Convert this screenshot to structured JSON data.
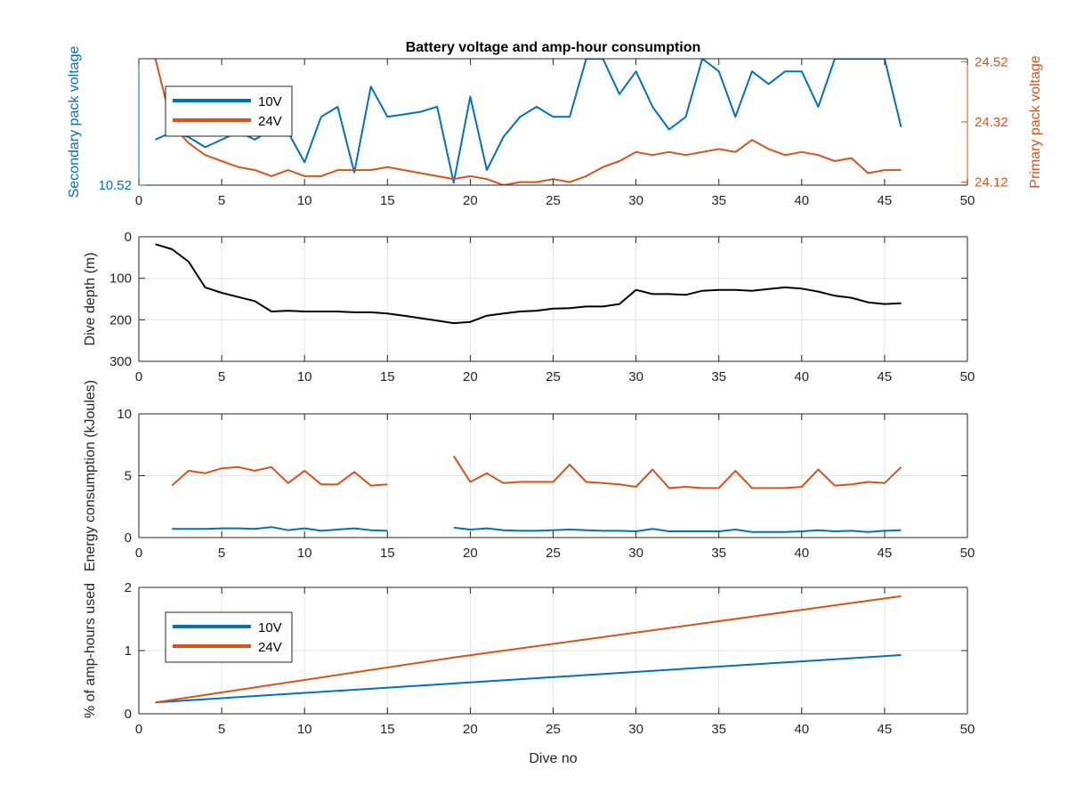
{
  "figure": {
    "title": "Battery voltage and amp-hour consumption"
  },
  "colors": {
    "blue": "#0072BD",
    "orange": "#D95319",
    "black": "#000000",
    "grid": "#e3e3e3",
    "axis": "#262626"
  },
  "chart_data": [
    {
      "type": "line",
      "title": "Battery voltage and amp-hour consumption",
      "xlabel": "",
      "ylabel": "Secondary pack voltage",
      "ylabel_right": "Primary pack voltage",
      "xlim": [
        0,
        50
      ],
      "xticks": [
        0,
        5,
        10,
        15,
        20,
        25,
        30,
        35,
        40,
        45,
        50
      ],
      "ylim_left": [
        10.52,
        10.57
      ],
      "yticks_left": [
        10.52
      ],
      "ylim_right": [
        24.11,
        24.53
      ],
      "yticks_right": [
        24.12,
        24.32,
        24.52
      ],
      "yticklabels_right": [
        "24.12",
        "24.32",
        "24.52"
      ],
      "legend": {
        "position": "top-left",
        "entries": [
          "10V",
          "24V"
        ]
      },
      "grid": false,
      "series": [
        {
          "name": "10V",
          "axis": "left",
          "x": [
            1,
            2,
            3,
            4,
            5,
            6,
            7,
            8,
            9,
            10,
            11,
            12,
            13,
            14,
            15,
            16,
            17,
            18,
            19,
            20,
            21,
            22,
            23,
            24,
            25,
            26,
            27,
            28,
            29,
            30,
            31,
            32,
            33,
            34,
            35,
            36,
            37,
            38,
            39,
            40,
            41,
            42,
            43,
            44,
            45,
            46
          ],
          "y": [
            10.538,
            10.541,
            10.539,
            10.535,
            10.538,
            10.541,
            10.538,
            10.542,
            10.541,
            10.529,
            10.547,
            10.551,
            10.525,
            10.559,
            10.547,
            10.548,
            10.549,
            10.551,
            10.521,
            10.555,
            10.526,
            10.539,
            10.547,
            10.551,
            10.547,
            10.547,
            10.57,
            10.57,
            10.556,
            10.565,
            10.551,
            10.542,
            10.547,
            10.57,
            10.565,
            10.547,
            10.565,
            10.56,
            10.565,
            10.565,
            10.551,
            10.57,
            10.57,
            10.57,
            10.57,
            10.543
          ]
        },
        {
          "name": "24V",
          "axis": "right",
          "x": [
            1,
            2,
            3,
            4,
            5,
            6,
            7,
            8,
            9,
            10,
            11,
            12,
            13,
            14,
            15,
            16,
            17,
            18,
            19,
            20,
            21,
            22,
            23,
            24,
            25,
            26,
            27,
            28,
            29,
            30,
            31,
            32,
            33,
            34,
            35,
            36,
            37,
            38,
            39,
            40,
            41,
            42,
            43,
            44,
            45,
            46
          ],
          "y": [
            24.53,
            24.31,
            24.25,
            24.21,
            24.19,
            24.17,
            24.16,
            24.14,
            24.16,
            24.14,
            24.14,
            24.16,
            24.16,
            24.16,
            24.17,
            24.16,
            24.15,
            24.14,
            24.13,
            24.14,
            24.13,
            24.11,
            24.12,
            24.12,
            24.13,
            24.12,
            24.14,
            24.17,
            24.19,
            24.22,
            24.21,
            24.22,
            24.21,
            24.22,
            24.23,
            24.22,
            24.26,
            24.23,
            24.21,
            24.22,
            24.21,
            24.19,
            24.2,
            24.15,
            24.16,
            24.16
          ]
        }
      ]
    },
    {
      "type": "line",
      "title": "",
      "xlabel": "",
      "ylabel": "Dive depth (m)",
      "xlim": [
        0,
        50
      ],
      "xticks": [
        0,
        5,
        10,
        15,
        20,
        25,
        30,
        35,
        40,
        45,
        50
      ],
      "ylim": [
        0,
        300
      ],
      "yreverse": true,
      "yticks": [
        0,
        100,
        200,
        300
      ],
      "grid": true,
      "series": [
        {
          "name": "",
          "color": "black",
          "x": [
            1,
            2,
            3,
            4,
            5,
            6,
            7,
            8,
            9,
            10,
            11,
            12,
            13,
            14,
            15,
            16,
            17,
            18,
            19,
            20,
            21,
            22,
            23,
            24,
            25,
            26,
            27,
            28,
            29,
            30,
            31,
            32,
            33,
            34,
            35,
            36,
            37,
            38,
            39,
            40,
            41,
            42,
            43,
            44,
            45,
            46
          ],
          "y": [
            18,
            30,
            60,
            122,
            135,
            145,
            155,
            180,
            178,
            180,
            180,
            180,
            182,
            182,
            185,
            190,
            196,
            202,
            208,
            205,
            190,
            185,
            180,
            178,
            173,
            172,
            168,
            168,
            162,
            128,
            138,
            138,
            140,
            130,
            128,
            128,
            130,
            126,
            122,
            125,
            132,
            142,
            147,
            158,
            162,
            160
          ]
        }
      ]
    },
    {
      "type": "line",
      "title": "",
      "xlabel": "",
      "ylabel": "Energy consumption (kJoules)",
      "xlim": [
        0,
        50
      ],
      "xticks": [
        0,
        5,
        10,
        15,
        20,
        25,
        30,
        35,
        40,
        45,
        50
      ],
      "ylim": [
        0,
        10
      ],
      "yticks": [
        0,
        5,
        10
      ],
      "grid": true,
      "series": [
        {
          "name": "24V",
          "color": "orange",
          "x": [
            2,
            3,
            4,
            5,
            6,
            7,
            8,
            9,
            10,
            11,
            12,
            13,
            14,
            15,
            null,
            19,
            20,
            21,
            22,
            23,
            24,
            25,
            26,
            27,
            28,
            29,
            30,
            31,
            32,
            33,
            34,
            35,
            36,
            37,
            38,
            39,
            40,
            41,
            42,
            43,
            44,
            45,
            46
          ],
          "y": [
            4.2,
            5.4,
            5.2,
            5.6,
            5.7,
            5.4,
            5.7,
            4.4,
            5.4,
            4.3,
            4.3,
            5.3,
            4.2,
            4.3,
            null,
            6.6,
            4.5,
            5.2,
            4.4,
            4.5,
            4.5,
            4.5,
            5.9,
            4.5,
            4.4,
            4.3,
            4.1,
            5.5,
            4.0,
            4.1,
            4.0,
            4.0,
            5.4,
            4.0,
            4.0,
            4.0,
            4.1,
            5.5,
            4.2,
            4.3,
            4.5,
            4.4,
            5.7
          ]
        },
        {
          "name": "10V",
          "color": "blue",
          "x": [
            2,
            3,
            4,
            5,
            6,
            7,
            8,
            9,
            10,
            11,
            12,
            13,
            14,
            15,
            null,
            19,
            20,
            21,
            22,
            23,
            24,
            25,
            26,
            27,
            28,
            29,
            30,
            31,
            32,
            33,
            34,
            35,
            36,
            37,
            38,
            39,
            40,
            41,
            42,
            43,
            44,
            45,
            46
          ],
          "y": [
            0.7,
            0.7,
            0.7,
            0.75,
            0.75,
            0.7,
            0.85,
            0.6,
            0.75,
            0.55,
            0.65,
            0.75,
            0.6,
            0.55,
            null,
            0.8,
            0.65,
            0.75,
            0.6,
            0.55,
            0.55,
            0.6,
            0.65,
            0.6,
            0.55,
            0.55,
            0.5,
            0.7,
            0.5,
            0.5,
            0.5,
            0.5,
            0.65,
            0.45,
            0.45,
            0.45,
            0.5,
            0.6,
            0.5,
            0.55,
            0.45,
            0.55,
            0.6
          ]
        }
      ]
    },
    {
      "type": "line",
      "title": "",
      "xlabel": "Dive no",
      "ylabel": "% of amp-hours used",
      "xlim": [
        0,
        50
      ],
      "xticks": [
        0,
        5,
        10,
        15,
        20,
        25,
        30,
        35,
        40,
        45,
        50
      ],
      "ylim": [
        0,
        2
      ],
      "yticks": [
        0,
        1,
        2
      ],
      "grid": true,
      "legend": {
        "position": "bottom-left",
        "entries": [
          "10V",
          "24V"
        ]
      },
      "series": [
        {
          "name": "10V",
          "color": "blue",
          "x": [
            1,
            46
          ],
          "y": [
            0.18,
            0.93
          ]
        },
        {
          "name": "24V",
          "color": "orange",
          "x": [
            1,
            19,
            46
          ],
          "y": [
            0.18,
            0.89,
            1.86
          ]
        }
      ]
    }
  ]
}
